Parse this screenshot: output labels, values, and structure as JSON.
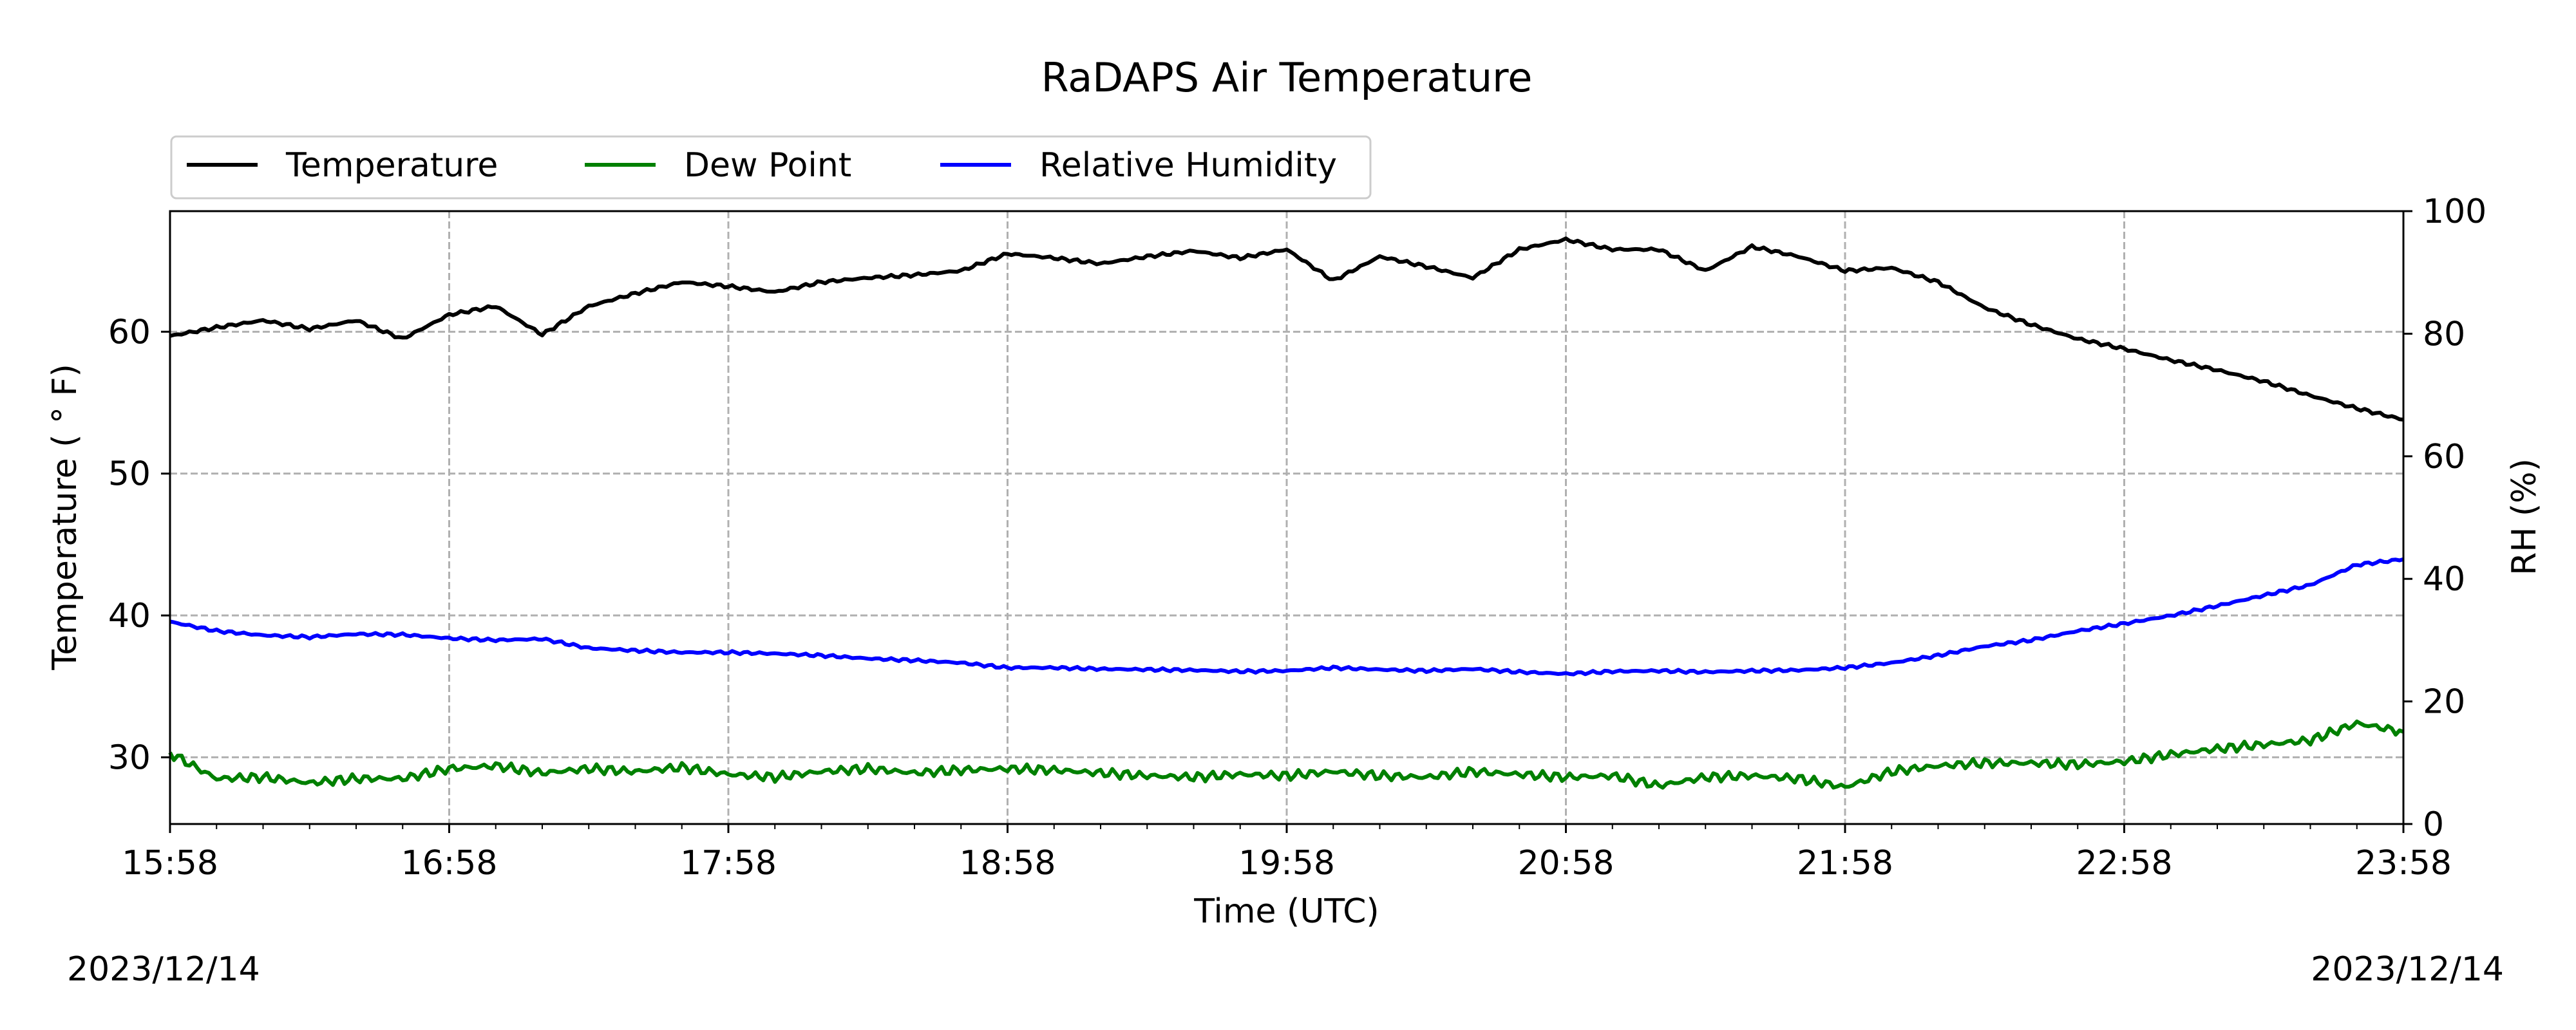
{
  "chart_data": {
    "type": "line",
    "title": "RaDAPS Air Temperature",
    "xlabel": "Time (UTC)",
    "ylabel": "Temperature ($^\\circ$F)",
    "ylabel_display": "Temperature ( ° F)",
    "y2label": "RH (%)",
    "x_tick_labels": [
      "15:58",
      "16:58",
      "17:58",
      "18:58",
      "19:58",
      "20:58",
      "21:58",
      "22:58",
      "23:58"
    ],
    "x_range": [
      "15:58",
      "23:58"
    ],
    "ylim": [
      25.3,
      68.5
    ],
    "y_ticks": [
      30,
      40,
      50,
      60
    ],
    "y2lim": [
      0,
      100
    ],
    "y2_ticks": [
      0,
      20,
      40,
      60,
      80,
      100
    ],
    "grid": true,
    "legend_position": "top-left, above plot",
    "date_left": "2023/12/14",
    "date_right": "2023/12/14",
    "series": [
      {
        "name": "Temperature",
        "axis": "left",
        "color": "#000000",
        "x": [
          "15:58",
          "16:08",
          "16:18",
          "16:28",
          "16:38",
          "16:48",
          "16:58",
          "17:08",
          "17:18",
          "17:28",
          "17:38",
          "17:48",
          "17:58",
          "18:08",
          "18:18",
          "18:28",
          "18:38",
          "18:48",
          "18:58",
          "19:08",
          "19:18",
          "19:28",
          "19:38",
          "19:48",
          "19:58",
          "20:08",
          "20:18",
          "20:28",
          "20:38",
          "20:48",
          "20:58",
          "21:08",
          "21:18",
          "21:28",
          "21:38",
          "21:48",
          "21:58",
          "22:08",
          "22:18",
          "22:28",
          "22:38",
          "22:48",
          "22:58",
          "23:08",
          "23:18",
          "23:28",
          "23:38",
          "23:48",
          "23:58"
        ],
        "values": [
          59.7,
          60.3,
          60.8,
          60.2,
          60.8,
          59.5,
          61.2,
          61.8,
          59.8,
          61.8,
          62.7,
          63.5,
          63.2,
          62.8,
          63.5,
          63.8,
          64.0,
          64.3,
          65.5,
          65.2,
          64.8,
          65.3,
          65.7,
          65.2,
          65.8,
          63.6,
          65.3,
          64.6,
          63.8,
          65.8,
          66.5,
          65.8,
          65.8,
          64.3,
          66.0,
          65.3,
          64.3,
          64.5,
          63.5,
          61.7,
          60.5,
          59.5,
          58.8,
          58.0,
          57.3,
          56.5,
          55.5,
          54.6,
          53.8
        ]
      },
      {
        "name": "Dew Point",
        "axis": "left",
        "color": "#008000",
        "x": [
          "15:58",
          "16:08",
          "16:18",
          "16:28",
          "16:38",
          "16:48",
          "16:58",
          "17:08",
          "17:18",
          "17:28",
          "17:38",
          "17:48",
          "17:58",
          "18:08",
          "18:18",
          "18:28",
          "18:38",
          "18:48",
          "18:58",
          "19:08",
          "19:18",
          "19:28",
          "19:38",
          "19:48",
          "19:58",
          "20:08",
          "20:18",
          "20:28",
          "20:38",
          "20:48",
          "20:58",
          "21:08",
          "21:18",
          "21:28",
          "21:38",
          "21:48",
          "21:58",
          "22:08",
          "22:18",
          "22:28",
          "22:38",
          "22:48",
          "22:58",
          "23:08",
          "23:18",
          "23:28",
          "23:38",
          "23:48",
          "23:58"
        ],
        "values": [
          30.3,
          28.5,
          28.6,
          28.2,
          28.5,
          28.5,
          29.2,
          29.4,
          28.9,
          29.2,
          29.0,
          29.3,
          28.8,
          28.6,
          29.0,
          29.2,
          28.9,
          29.1,
          29.2,
          29.1,
          28.9,
          28.7,
          28.6,
          28.8,
          28.7,
          29.0,
          28.7,
          28.6,
          29.0,
          28.8,
          28.6,
          28.7,
          28.0,
          28.6,
          28.7,
          28.5,
          27.9,
          29.0,
          29.4,
          29.6,
          29.6,
          29.5,
          29.7,
          30.2,
          30.6,
          30.9,
          31.2,
          32.4,
          31.8
        ]
      },
      {
        "name": "Relative Humidity",
        "axis": "right",
        "color": "#0000ff",
        "x": [
          "15:58",
          "16:08",
          "16:18",
          "16:28",
          "16:38",
          "16:48",
          "16:58",
          "17:08",
          "17:18",
          "17:28",
          "17:38",
          "17:48",
          "17:58",
          "18:08",
          "18:18",
          "18:28",
          "18:38",
          "18:48",
          "18:58",
          "19:08",
          "19:18",
          "19:28",
          "19:38",
          "19:48",
          "19:58",
          "20:08",
          "20:18",
          "20:28",
          "20:38",
          "20:48",
          "20:58",
          "21:08",
          "21:18",
          "21:28",
          "21:38",
          "21:48",
          "21:58",
          "22:08",
          "22:18",
          "22:28",
          "22:38",
          "22:48",
          "22:58",
          "23:08",
          "23:18",
          "23:28",
          "23:38",
          "23:48",
          "23:58"
        ],
        "values": [
          33.0,
          31.5,
          30.8,
          30.5,
          31.0,
          30.9,
          30.3,
          30.0,
          30.2,
          28.7,
          28.3,
          28.0,
          28.0,
          27.8,
          27.5,
          27.0,
          26.7,
          26.3,
          25.5,
          25.5,
          25.3,
          25.2,
          25.1,
          24.9,
          25.0,
          25.5,
          25.2,
          25.0,
          25.3,
          24.8,
          24.5,
          24.9,
          25.0,
          24.8,
          25.0,
          25.1,
          25.5,
          26.3,
          27.5,
          29.0,
          30.0,
          31.5,
          32.7,
          34.0,
          35.6,
          37.3,
          39.0,
          42.3,
          43.2
        ]
      }
    ]
  }
}
